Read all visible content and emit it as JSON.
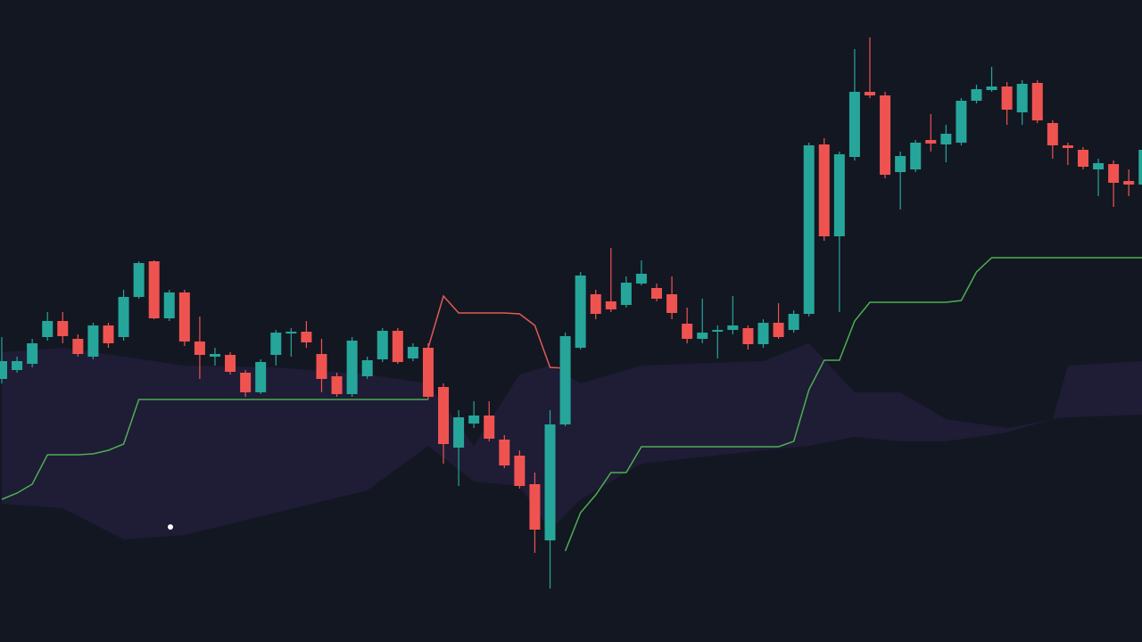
{
  "chart_data": {
    "type": "candlestick",
    "ylim": [
      0,
      720
    ],
    "up_color": "#26a69a",
    "down_color": "#ef5350",
    "open": [
      295,
      305,
      312,
      342,
      360,
      340,
      320,
      355,
      342,
      387,
      427,
      363,
      392,
      337,
      320,
      322,
      302,
      280,
      322,
      346,
      348,
      323,
      298,
      278,
      298,
      317,
      349,
      318,
      330,
      286,
      218,
      245,
      254,
      227,
      209,
      177,
      114,
      244,
      330,
      390,
      382,
      378,
      402,
      397,
      390,
      357,
      340,
      348,
      350,
      352,
      334,
      358,
      350,
      368,
      558,
      455,
      544,
      617,
      613,
      527,
      530,
      563,
      558,
      560,
      607,
      619,
      623,
      594,
      627,
      582,
      557,
      552,
      530,
      536,
      517,
      513
    ],
    "high": [
      342,
      320,
      340,
      370,
      370,
      345,
      358,
      358,
      395,
      427,
      428,
      395,
      395,
      365,
      330,
      325,
      305,
      317,
      350,
      352,
      360,
      340,
      302,
      342,
      320,
      352,
      352,
      335,
      335,
      290,
      260,
      270,
      270,
      232,
      215,
      190,
      260,
      347,
      415,
      395,
      442,
      410,
      428,
      402,
      410,
      375,
      385,
      355,
      388,
      355,
      362,
      380,
      372,
      560,
      565,
      550,
      665,
      678,
      617,
      550,
      563,
      592,
      580,
      610,
      625,
      645,
      628,
      630,
      630,
      585,
      560,
      555,
      542,
      540,
      530,
      555
    ],
    "low": [
      290,
      302,
      308,
      338,
      335,
      320,
      317,
      330,
      338,
      385,
      362,
      360,
      332,
      295,
      310,
      300,
      275,
      278,
      310,
      320,
      330,
      280,
      275,
      275,
      295,
      314,
      312,
      315,
      272,
      200,
      175,
      240,
      225,
      195,
      172,
      100,
      60,
      242,
      328,
      362,
      370,
      375,
      400,
      382,
      362,
      335,
      335,
      318,
      345,
      328,
      330,
      340,
      347,
      365,
      450,
      370,
      540,
      610,
      520,
      485,
      527,
      550,
      538,
      557,
      604,
      617,
      580,
      580,
      582,
      542,
      535,
      530,
      500,
      488,
      500,
      510
    ],
    "close": [
      315,
      315,
      335,
      360,
      343,
      323,
      355,
      335,
      387,
      425,
      363,
      392,
      337,
      322,
      323,
      303,
      280,
      314,
      347,
      348,
      336,
      295,
      278,
      338,
      316,
      349,
      314,
      331,
      275,
      222,
      252,
      254,
      228,
      198,
      175,
      126,
      244,
      343,
      411,
      368,
      373,
      403,
      413,
      385,
      369,
      340,
      347,
      350,
      355,
      334,
      358,
      342,
      368,
      557,
      455,
      547,
      617,
      613,
      524,
      545,
      560,
      559,
      570,
      607,
      620,
      623,
      597,
      626,
      585,
      557,
      554,
      533,
      537,
      515,
      513,
      552
    ],
    "lines": [
      {
        "color": "#4caf50",
        "values": [
          160,
          167,
          177,
          210,
          210,
          210,
          211,
          215,
          222,
          272,
          272,
          272,
          272,
          272,
          272,
          272,
          272,
          272,
          272,
          272,
          272,
          272,
          272,
          272,
          272,
          272,
          272,
          272,
          272,
          null,
          null,
          null,
          null,
          null,
          null,
          null,
          null,
          102,
          145,
          165,
          190,
          190,
          219,
          219,
          219,
          219,
          219,
          219,
          219,
          219,
          219,
          219,
          225,
          283,
          316,
          316,
          360,
          381,
          381,
          381,
          381,
          381,
          381,
          383,
          415,
          431,
          431,
          431,
          431,
          431,
          431,
          431,
          431,
          431,
          431,
          431
        ]
      },
      {
        "color": "#e05a55",
        "values": [
          null,
          null,
          null,
          null,
          null,
          null,
          null,
          null,
          null,
          null,
          null,
          null,
          null,
          null,
          null,
          null,
          null,
          null,
          null,
          null,
          null,
          null,
          null,
          null,
          null,
          null,
          null,
          null,
          330,
          388,
          369,
          369,
          369,
          369,
          368,
          355,
          308,
          307,
          null,
          null,
          null,
          null,
          null,
          null,
          null,
          null,
          null,
          null,
          null,
          null,
          null,
          null,
          null,
          null,
          null,
          null,
          null,
          null,
          null,
          null,
          null,
          null,
          null,
          null,
          null,
          null,
          null,
          null,
          null,
          null,
          null,
          null,
          null,
          null,
          null,
          null
        ]
      }
    ],
    "band": {
      "color": "#1f1c36",
      "x": [
        0,
        4,
        8,
        12,
        18,
        24,
        28,
        31,
        34,
        36,
        38,
        42,
        50,
        53,
        56,
        59,
        62,
        66,
        69,
        70,
        75
      ],
      "upper": [
        325,
        330,
        320,
        310,
        308,
        300,
        290,
        220,
        300,
        310,
        290,
        310,
        315,
        335,
        280,
        280,
        250,
        240,
        250,
        310,
        315
      ],
      "lower": [
        155,
        150,
        115,
        120,
        145,
        170,
        220,
        180,
        175,
        125,
        160,
        200,
        215,
        220,
        230,
        225,
        225,
        235,
        250,
        252,
        255
      ]
    }
  }
}
